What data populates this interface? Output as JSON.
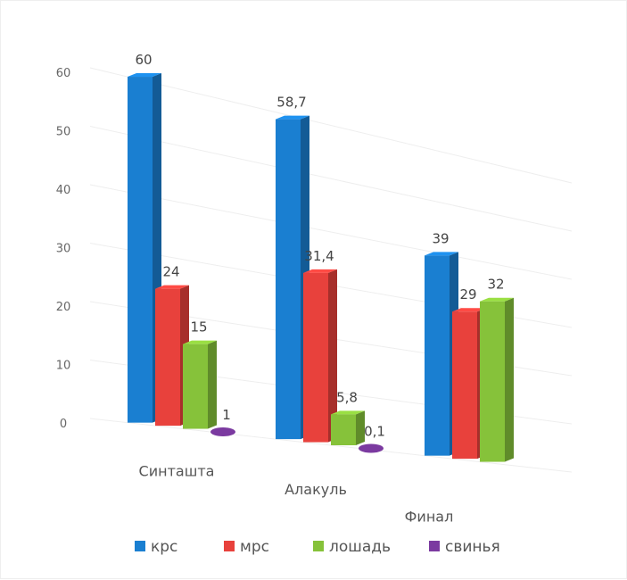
{
  "chart_data": {
    "type": "bar",
    "title": "",
    "xlabel": "",
    "ylabel": "",
    "ylim": [
      0,
      60
    ],
    "yticks": [
      0,
      10,
      20,
      30,
      40,
      50,
      60
    ],
    "grid": true,
    "legend_position": "bottom",
    "categories": [
      "Синташта",
      "Алакуль",
      "Финал"
    ],
    "series": [
      {
        "name": "крс",
        "color": "#1a7fd1",
        "values": [
          60,
          58.7,
          39
        ],
        "labels": [
          "60",
          "58,7",
          "39"
        ]
      },
      {
        "name": "мрс",
        "color": "#e8413c",
        "values": [
          24,
          31.4,
          29
        ],
        "labels": [
          "24",
          "31,4",
          "29"
        ]
      },
      {
        "name": "лошадь",
        "color": "#86c23a",
        "values": [
          15,
          5.8,
          32
        ],
        "labels": [
          "15",
          "5,8",
          "32"
        ]
      },
      {
        "name": "свинья",
        "color": "#7b3aa0",
        "values": [
          1,
          0.1,
          null
        ],
        "labels": [
          "1",
          "0,1",
          ""
        ]
      }
    ]
  }
}
